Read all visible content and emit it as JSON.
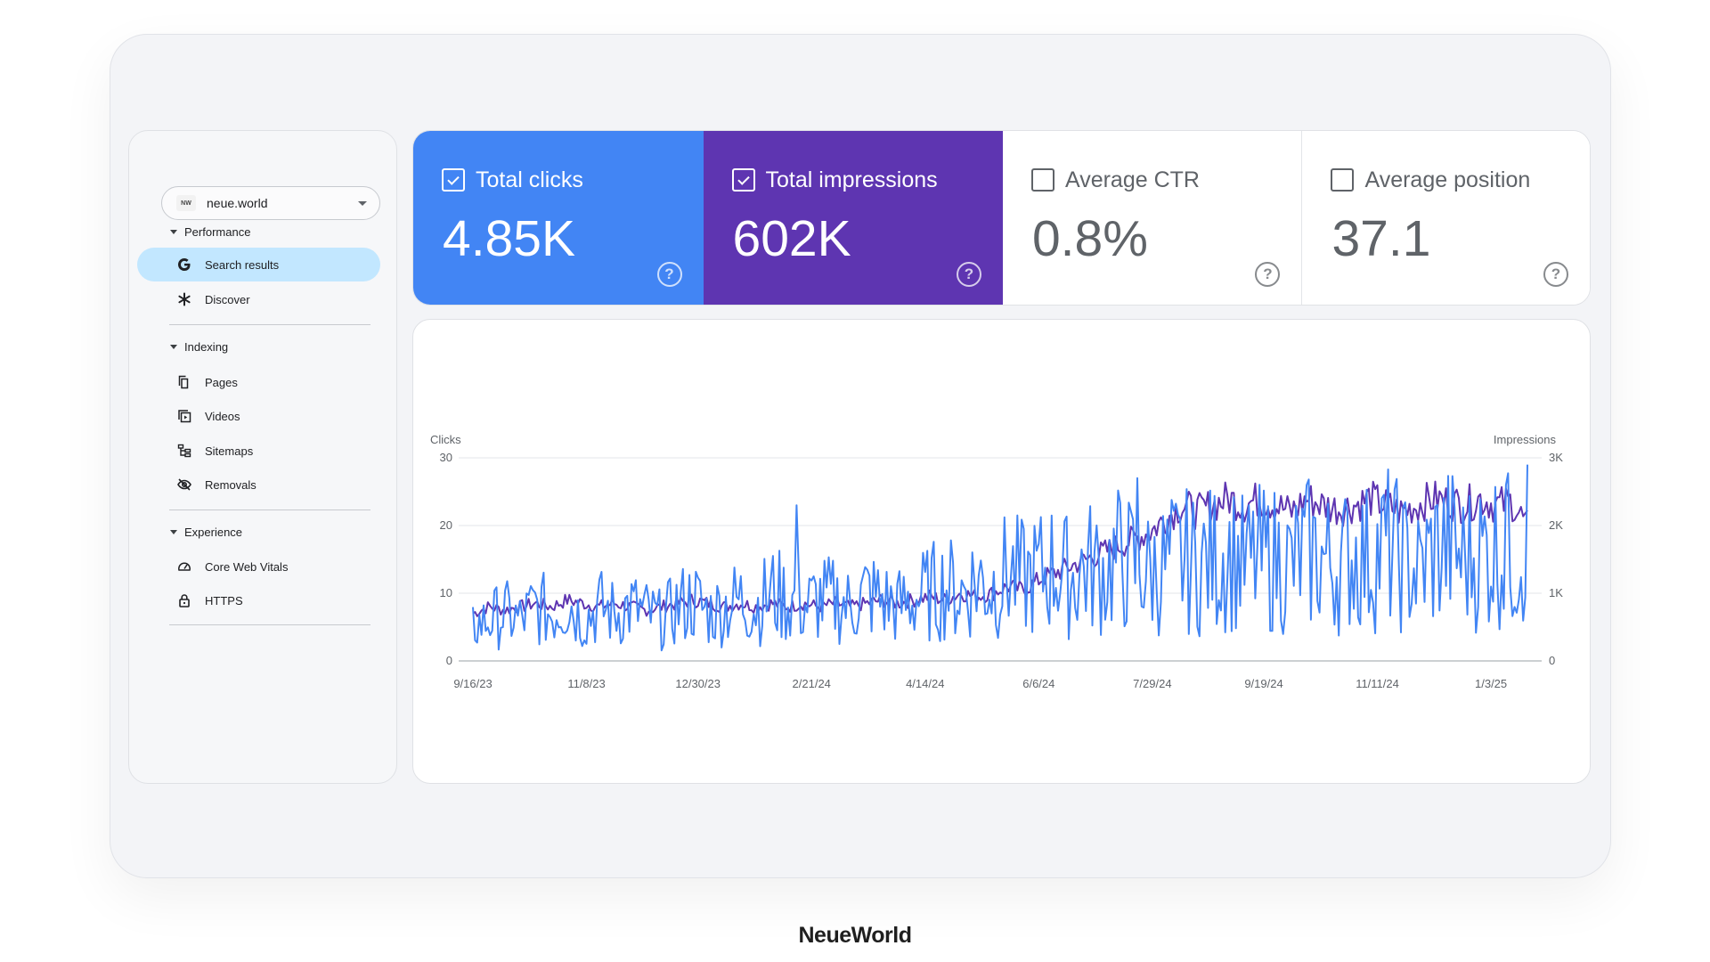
{
  "sidebar": {
    "property": {
      "logo_text": "NW",
      "name": "neue.world"
    },
    "sections": {
      "performance": "Performance",
      "indexing": "Indexing",
      "experience": "Experience"
    },
    "items": {
      "search_results": "Search results",
      "discover": "Discover",
      "pages": "Pages",
      "videos": "Videos",
      "sitemaps": "Sitemaps",
      "removals": "Removals",
      "core_web_vitals": "Core Web Vitals",
      "https": "HTTPS"
    }
  },
  "metrics": [
    {
      "title": "Total clicks",
      "value": "4.85K",
      "checked": true,
      "color": "#4285f4"
    },
    {
      "title": "Total impressions",
      "value": "602K",
      "checked": true,
      "color": "#5e35b1"
    },
    {
      "title": "Average CTR",
      "value": "0.8%",
      "checked": false
    },
    {
      "title": "Average position",
      "value": "37.1",
      "checked": false
    }
  ],
  "help_glyph": "?",
  "brand": "NeueWorld",
  "chart_data": {
    "type": "line",
    "left_axis_label": "Clicks",
    "right_axis_label": "Impressions",
    "y_left_ticks": [
      "30",
      "20",
      "10",
      "0"
    ],
    "y_right_ticks": [
      "3K",
      "2K",
      "1K",
      "0"
    ],
    "y_left_lim": [
      0,
      30
    ],
    "y_right_lim": [
      0,
      3000
    ],
    "x_ticks": [
      "9/16/23",
      "11/8/23",
      "12/30/23",
      "2/21/24",
      "4/14/24",
      "6/6/24",
      "7/29/24",
      "9/19/24",
      "11/11/24",
      "1/3/25"
    ],
    "x_range": [
      "9/16/23",
      "1/20/25"
    ],
    "grid": true,
    "series": [
      {
        "name": "Clicks",
        "axis": "left",
        "color": "#4285f4",
        "weekly_avg": [
          5,
          6,
          7,
          6,
          8,
          7,
          9,
          6,
          8,
          7,
          8,
          7,
          6,
          8,
          9,
          7,
          8,
          9,
          8,
          10,
          9,
          8,
          9,
          9,
          8,
          10,
          9,
          8,
          9,
          10,
          11,
          10,
          12,
          11,
          13,
          12,
          13,
          14,
          12,
          14,
          13,
          15,
          14,
          13,
          14,
          15,
          14,
          15,
          16,
          14,
          15,
          15,
          14,
          16,
          15,
          14,
          16,
          15,
          17,
          15,
          13,
          16,
          17,
          15,
          16,
          17,
          16,
          18
        ],
        "peaks": [
          {
            "x": "2/14/24",
            "y": 23
          },
          {
            "x": "7/22/24",
            "y": 27
          },
          {
            "x": "9/12/24",
            "y": 23
          },
          {
            "x": "1/10/25",
            "y": 26
          },
          {
            "x": "1/20/25",
            "y": 29
          }
        ]
      },
      {
        "name": "Impressions",
        "axis": "right",
        "color": "#5e35b1",
        "weekly_avg": [
          700,
          800,
          750,
          800,
          850,
          800,
          900,
          850,
          800,
          850,
          800,
          750,
          800,
          850,
          900,
          850,
          800,
          850,
          800,
          850,
          800,
          850,
          800,
          850,
          800,
          850,
          900,
          850,
          900,
          950,
          900,
          1000,
          950,
          1000,
          1100,
          1050,
          1200,
          1300,
          1400,
          1500,
          1600,
          1700,
          1800,
          1900,
          2100,
          2300,
          2200,
          2300,
          2400,
          2300,
          2400,
          2300,
          2200,
          2400,
          2300,
          2250,
          2300,
          2400,
          2300,
          2200,
          2300,
          2400,
          2350,
          2300,
          2400,
          2300,
          2350,
          2000
        ]
      }
    ]
  }
}
